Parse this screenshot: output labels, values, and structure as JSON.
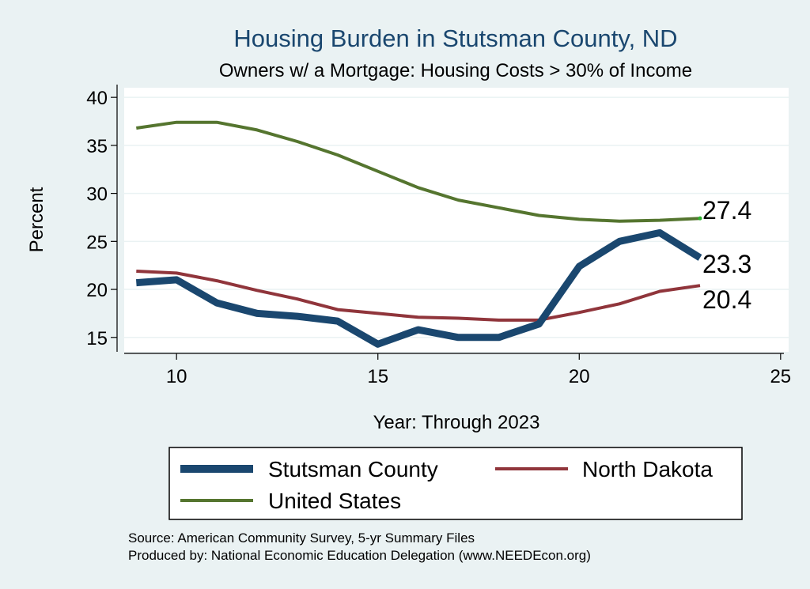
{
  "colors": {
    "background": "#eaf2f3",
    "plot_background": "#ffffff",
    "stutsman": "#1a476f",
    "north_dakota": "#90353b",
    "united_states": "#55752f",
    "title": "#1a476f"
  },
  "chart_data": {
    "type": "line",
    "title": "Housing Burden in Stutsman County, ND",
    "subtitle": "Owners w/ a Mortgage: Housing Costs > 30% of Income",
    "xlabel": "Year: Through 2023",
    "ylabel": "Percent",
    "xlim": [
      8.7,
      25.2
    ],
    "ylim": [
      13.5,
      41
    ],
    "xticks": [
      10,
      15,
      20,
      25
    ],
    "yticks": [
      15,
      20,
      25,
      30,
      35,
      40
    ],
    "grid": true,
    "legend_position": "bottom",
    "x": [
      9,
      10,
      11,
      12,
      13,
      14,
      15,
      16,
      17,
      18,
      19,
      20,
      21,
      22,
      23
    ],
    "series": [
      {
        "name": "Stutsman County",
        "color_key": "stutsman",
        "width": 9,
        "values": [
          20.7,
          21.0,
          18.6,
          17.5,
          17.2,
          16.7,
          14.3,
          15.8,
          15.0,
          15.0,
          16.4,
          22.4,
          25.0,
          25.9,
          23.3
        ],
        "end_label": "23.3"
      },
      {
        "name": "North Dakota",
        "color_key": "north_dakota",
        "width": 4,
        "values": [
          21.9,
          21.7,
          20.9,
          19.9,
          19.0,
          17.9,
          17.5,
          17.1,
          17.0,
          16.8,
          16.8,
          17.6,
          18.5,
          19.8,
          20.4
        ],
        "end_label": "20.4"
      },
      {
        "name": "United States",
        "color_key": "united_states",
        "width": 4,
        "values": [
          36.8,
          37.4,
          37.4,
          36.6,
          35.4,
          34.0,
          32.3,
          30.6,
          29.3,
          28.5,
          27.7,
          27.3,
          27.1,
          27.2,
          27.4
        ],
        "end_label": "27.4"
      }
    ]
  },
  "notes": {
    "source": "Source: American Community Survey, 5-yr Summary Files",
    "produced_by": "Produced by: National Economic Education Delegation (www.NEEDEcon.org)"
  }
}
